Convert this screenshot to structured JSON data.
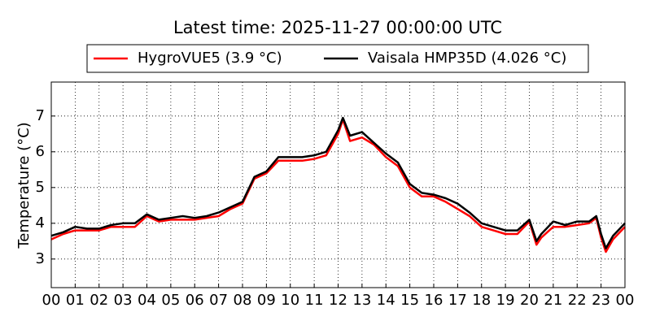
{
  "chart_data": {
    "type": "line",
    "title": "Latest time: 2025-11-27 00:00:00 UTC",
    "y_label": "Temperature (°C)",
    "x": [
      0,
      0.5,
      1,
      1.5,
      2,
      2.5,
      3,
      3.5,
      4,
      4.5,
      5,
      5.5,
      6,
      6.5,
      7,
      7.5,
      8,
      8.5,
      9,
      9.5,
      10,
      10.5,
      11,
      11.5,
      12,
      12.2,
      12.5,
      13,
      13.5,
      14,
      14.5,
      15,
      15.5,
      16,
      16.5,
      17,
      17.5,
      18,
      18.5,
      19,
      19.5,
      20,
      20.3,
      20.5,
      21,
      21.5,
      22,
      22.5,
      22.8,
      23,
      23.2,
      23.5,
      24
    ],
    "series": [
      {
        "name": "HygroVUE5 (3.9 °C)",
        "color": "#ff0000",
        "values": [
          3.55,
          3.7,
          3.8,
          3.8,
          3.8,
          3.9,
          3.9,
          3.9,
          4.2,
          4.05,
          4.1,
          4.1,
          4.1,
          4.15,
          4.2,
          4.4,
          4.55,
          5.25,
          5.4,
          5.75,
          5.75,
          5.75,
          5.8,
          5.9,
          6.5,
          6.9,
          6.3,
          6.4,
          6.2,
          5.85,
          5.6,
          5.0,
          4.75,
          4.75,
          4.6,
          4.4,
          4.2,
          3.9,
          3.8,
          3.7,
          3.7,
          4.05,
          3.4,
          3.6,
          3.9,
          3.9,
          3.95,
          4.0,
          4.15,
          3.6,
          3.2,
          3.55,
          3.9
        ]
      },
      {
        "name": "Vaisala HMP35D (4.026 °C)",
        "color": "#000000",
        "values": [
          3.65,
          3.75,
          3.9,
          3.85,
          3.85,
          3.95,
          4.0,
          4.0,
          4.25,
          4.1,
          4.15,
          4.2,
          4.15,
          4.2,
          4.3,
          4.45,
          4.6,
          5.3,
          5.45,
          5.85,
          5.85,
          5.85,
          5.9,
          6.0,
          6.6,
          6.95,
          6.45,
          6.55,
          6.25,
          5.95,
          5.7,
          5.1,
          4.85,
          4.8,
          4.7,
          4.55,
          4.3,
          4.0,
          3.9,
          3.8,
          3.8,
          4.1,
          3.5,
          3.7,
          4.05,
          3.95,
          4.05,
          4.05,
          4.2,
          3.7,
          3.3,
          3.65,
          4.0
        ]
      }
    ],
    "xlim": [
      0,
      24
    ],
    "xticks": [
      {
        "value": 0,
        "label": "00"
      },
      {
        "value": 1,
        "label": "01"
      },
      {
        "value": 2,
        "label": "02"
      },
      {
        "value": 3,
        "label": "03"
      },
      {
        "value": 4,
        "label": "04"
      },
      {
        "value": 5,
        "label": "05"
      },
      {
        "value": 6,
        "label": "06"
      },
      {
        "value": 7,
        "label": "07"
      },
      {
        "value": 8,
        "label": "08"
      },
      {
        "value": 9,
        "label": "09"
      },
      {
        "value": 10,
        "label": "10"
      },
      {
        "value": 11,
        "label": "11"
      },
      {
        "value": 12,
        "label": "12"
      },
      {
        "value": 13,
        "label": "13"
      },
      {
        "value": 14,
        "label": "14"
      },
      {
        "value": 15,
        "label": "15"
      },
      {
        "value": 16,
        "label": "16"
      },
      {
        "value": 17,
        "label": "17"
      },
      {
        "value": 18,
        "label": "18"
      },
      {
        "value": 19,
        "label": "19"
      },
      {
        "value": 20,
        "label": "20"
      },
      {
        "value": 21,
        "label": "21"
      },
      {
        "value": 22,
        "label": "22"
      },
      {
        "value": 23,
        "label": "23"
      },
      {
        "value": 24,
        "label": "00"
      }
    ],
    "ylim": [
      2.2,
      7.95
    ],
    "yticks": [
      3,
      4,
      5,
      6,
      7
    ],
    "grid": true,
    "legend": "top"
  }
}
